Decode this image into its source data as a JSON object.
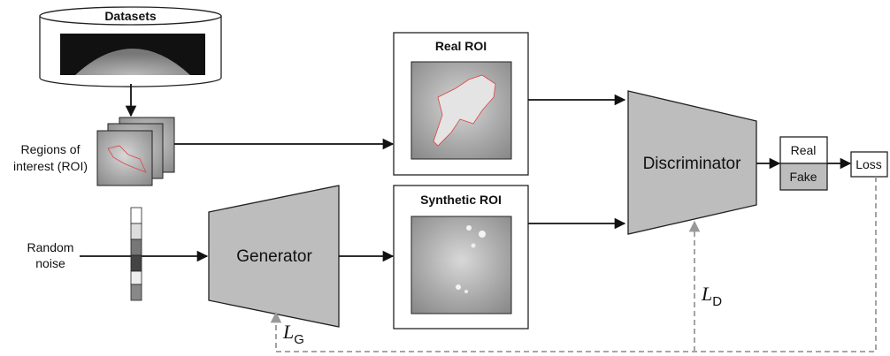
{
  "datasets": {
    "label": "Datasets"
  },
  "roi_input": {
    "label_lines": [
      "Regions of",
      "interest (ROI)"
    ]
  },
  "noise_input": {
    "label_lines": [
      "Random",
      "noise"
    ]
  },
  "generator": {
    "label": "Generator"
  },
  "real_roi": {
    "label": "Real ROI"
  },
  "synthetic_roi": {
    "label": "Synthetic ROI"
  },
  "discriminator": {
    "label": "Discriminator"
  },
  "output": {
    "real": "Real",
    "fake": "Fake"
  },
  "loss": {
    "label": "Loss"
  },
  "loss_generator": {
    "symbol": "L",
    "subscript": "G"
  },
  "loss_discriminator": {
    "symbol": "L",
    "subscript": "D"
  }
}
